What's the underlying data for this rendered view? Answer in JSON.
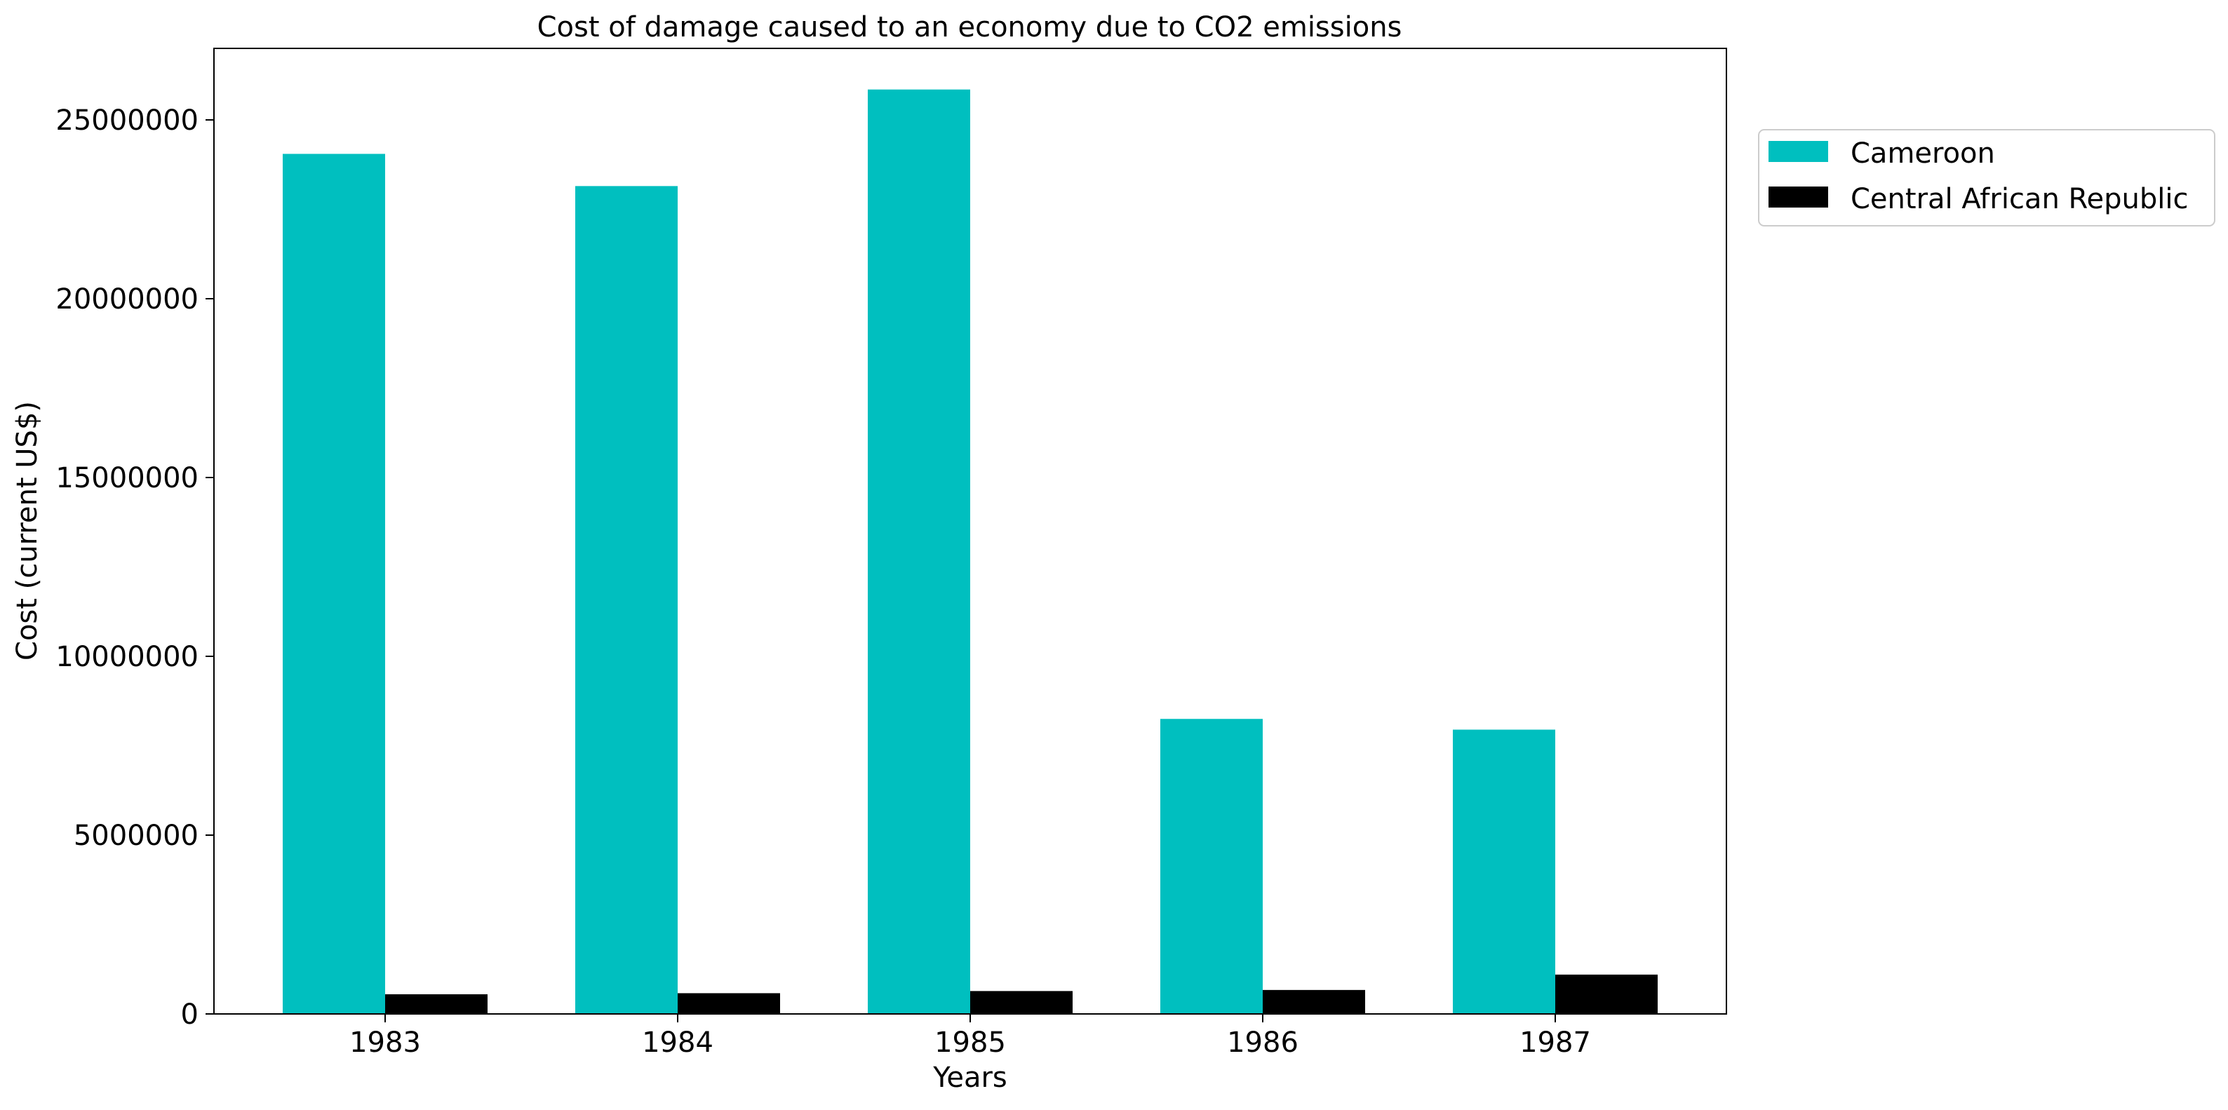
{
  "chart_data": {
    "type": "bar",
    "title": "Cost of damage caused to an economy due to CO2 emissions",
    "xlabel": "Years",
    "ylabel": "Cost (current US$)",
    "categories": [
      "1983",
      "1984",
      "1985",
      "1986",
      "1987"
    ],
    "series": [
      {
        "name": "Cameroon",
        "color": "#00bfbf",
        "values": [
          24050000,
          23150000,
          25850000,
          8250000,
          7950000
        ]
      },
      {
        "name": "Central African Republic",
        "color": "#000000",
        "values": [
          550000,
          580000,
          640000,
          670000,
          1100000
        ]
      }
    ],
    "ylim": [
      0,
      27000000
    ],
    "yticks": [
      0,
      5000000,
      10000000,
      15000000,
      20000000,
      25000000
    ],
    "ytick_labels": [
      "0",
      "5000000",
      "10000000",
      "15000000",
      "20000000",
      "25000000"
    ],
    "grid": false,
    "legend_position": "outside-upper-right"
  }
}
